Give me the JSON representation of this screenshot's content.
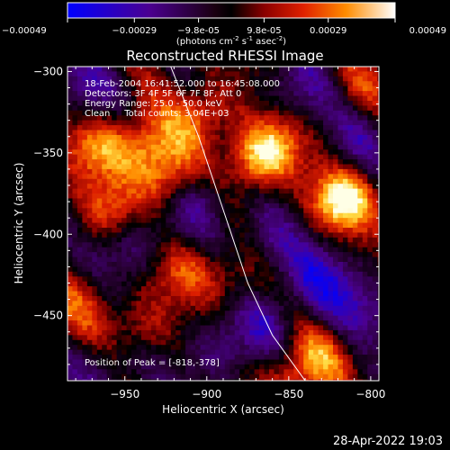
{
  "colorbar": {
    "tick_labels": [
      "-0.00049",
      "-0.00029",
      "-9.8e-05",
      "9.8e-05",
      "0.00029",
      "0.00049"
    ],
    "unit_label": "(photons cm",
    "unit_sup1": "-2",
    "unit_mid": " s",
    "unit_sup2": "-1",
    "unit_tail": " asec",
    "unit_sup3": "-2",
    "unit_end": ")",
    "range": [
      -0.00049,
      0.00049
    ]
  },
  "annotations": {
    "time": "18-Feb-2004 16:41:52.000 to 16:45:08.000",
    "detectors": "Detectors: 3F 4F 5F 6F 7F 8F, Att 0",
    "energy": "Energy Range: 25.0 - 50.0 keV",
    "clean": "Clean     Total counts: 3.04E+03",
    "peak": "Position of Peak = [-818,-378]"
  },
  "footer": {
    "date": "28-Apr-2022 19:03"
  },
  "chart_data": {
    "type": "heatmap",
    "title": "Reconstructed RHESSI Image",
    "xlabel": "Heliocentric X (arcsec)",
    "ylabel": "Heliocentric Y (arcsec)",
    "xlim": [
      -985,
      -795
    ],
    "ylim": [
      -490,
      -297
    ],
    "xticks": [
      -950,
      -900,
      -850,
      -800
    ],
    "yticks": [
      -300,
      -350,
      -400,
      -450
    ],
    "xtick_labels": [
      "−950",
      "−900",
      "−850",
      "−800"
    ],
    "ytick_labels": [
      "−300",
      "−350",
      "−400",
      "−450"
    ],
    "colormap": "rhessi-heat",
    "peak_position": [
      -818,
      -378
    ],
    "limb_curve": {
      "x": [
        -922,
        -905,
        -890,
        -875,
        -860,
        -840
      ],
      "y": [
        -297,
        -340,
        -385,
        -430,
        -462,
        -490
      ]
    },
    "hot_regions": [
      {
        "x": -818,
        "y": -378,
        "intensity": 1.0
      },
      {
        "x": -968,
        "y": -345,
        "intensity": 0.55
      },
      {
        "x": -940,
        "y": -345,
        "intensity": 0.6
      },
      {
        "x": -905,
        "y": -325,
        "intensity": 0.55
      },
      {
        "x": -873,
        "y": -355,
        "intensity": 0.65
      },
      {
        "x": -860,
        "y": -343,
        "intensity": 0.55
      },
      {
        "x": -925,
        "y": -365,
        "intensity": 0.7
      },
      {
        "x": -960,
        "y": -385,
        "intensity": 0.5
      },
      {
        "x": -915,
        "y": -420,
        "intensity": 0.45
      },
      {
        "x": -885,
        "y": -425,
        "intensity": 0.4
      },
      {
        "x": -945,
        "y": -460,
        "intensity": 0.45
      },
      {
        "x": -848,
        "y": -485,
        "intensity": 0.55
      },
      {
        "x": -830,
        "y": -470,
        "intensity": 0.4
      },
      {
        "x": -975,
        "y": -440,
        "intensity": 0.35
      },
      {
        "x": -810,
        "y": -310,
        "intensity": 0.3
      }
    ],
    "cold_regions": [
      {
        "x": -905,
        "y": -375,
        "intensity": 0.6
      },
      {
        "x": -948,
        "y": -405,
        "intensity": 0.55
      },
      {
        "x": -868,
        "y": -405,
        "intensity": 0.5
      },
      {
        "x": -835,
        "y": -425,
        "intensity": 0.6
      },
      {
        "x": -810,
        "y": -445,
        "intensity": 0.5
      },
      {
        "x": -960,
        "y": -480,
        "intensity": 0.5
      },
      {
        "x": -895,
        "y": -470,
        "intensity": 0.45
      },
      {
        "x": -975,
        "y": -305,
        "intensity": 0.45
      },
      {
        "x": -845,
        "y": -310,
        "intensity": 0.45
      },
      {
        "x": -808,
        "y": -340,
        "intensity": 0.4
      },
      {
        "x": -865,
        "y": -455,
        "intensity": 0.4
      }
    ]
  }
}
